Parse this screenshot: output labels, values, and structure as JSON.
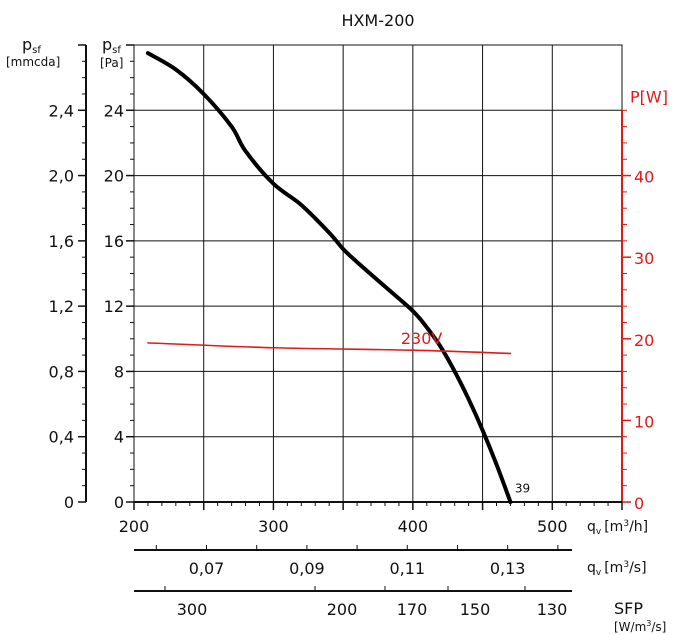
{
  "chart_data": {
    "type": "line",
    "title": "HXM-200",
    "left_axis_mmcda": {
      "label_main": "p",
      "label_sub": "sf",
      "unit": "[mmcda]",
      "range": [
        0,
        2.8
      ],
      "ticks": [
        0,
        0.4,
        0.8,
        1.2,
        1.6,
        2.0,
        2.4
      ],
      "tick_labels": [
        "0",
        "0,4",
        "0,8",
        "1,2",
        "1,6",
        "2,0",
        "2,4"
      ]
    },
    "left_axis_pa": {
      "label_main": "p",
      "label_sub": "sf",
      "unit": "[Pa]",
      "range": [
        0,
        28
      ],
      "ticks": [
        0,
        4,
        8,
        12,
        16,
        20,
        24
      ],
      "tick_labels": [
        "0",
        "4",
        "8",
        "12",
        "16",
        "20",
        "24"
      ]
    },
    "right_axis_power": {
      "label": "P[W]",
      "color": "#e11919",
      "range": [
        0,
        56
      ],
      "ticks": [
        0,
        10,
        20,
        30,
        40
      ],
      "tick_labels": [
        "0",
        "10",
        "20",
        "30",
        "40"
      ]
    },
    "x_axis_m3h": {
      "label_main": "q",
      "label_sub": "v",
      "unit_prefix": "[m",
      "unit_sup": "3",
      "unit_suffix": "/h]",
      "range": [
        200,
        550
      ],
      "ticks": [
        200,
        300,
        400,
        500
      ],
      "tick_labels": [
        "200",
        "300",
        "400",
        "500"
      ]
    },
    "x_axis_m3s": {
      "label_main": "q",
      "label_sub": "v",
      "unit_prefix": "[m",
      "unit_sup": "3",
      "unit_suffix": "/s]",
      "ticks": [
        0.07,
        0.09,
        0.11,
        0.13
      ],
      "tick_labels": [
        "0,07",
        "0,09",
        "0,11",
        "0,13"
      ]
    },
    "x_axis_sfp": {
      "label": "SFP",
      "unit_prefix": "[W/m",
      "unit_sup": "3",
      "unit_suffix": "/s]",
      "ticks": [
        300,
        200,
        170,
        150,
        130
      ],
      "tick_labels": [
        "300",
        "200",
        "170",
        "150",
        "130"
      ]
    },
    "series": [
      {
        "axis": "pressure_pa",
        "color": "#000000",
        "x": [
          210,
          230,
          250,
          270,
          280,
          300,
          320,
          340,
          350,
          360,
          380,
          400,
          410,
          420,
          430,
          440,
          450,
          460,
          470
        ],
        "y": [
          27.5,
          26.5,
          25.0,
          23.0,
          21.5,
          19.5,
          18.2,
          16.5,
          15.5,
          14.7,
          13.2,
          11.7,
          10.7,
          9.5,
          8.0,
          6.3,
          4.4,
          2.3,
          0
        ]
      },
      {
        "name": "230V",
        "axis": "power_w",
        "color": "#e11919",
        "x": [
          210,
          300,
          400,
          470
        ],
        "y": [
          19.5,
          18.9,
          18.6,
          18.2
        ]
      }
    ],
    "annotations": [
      {
        "text": "39",
        "x": 471,
        "y_pa": 0.7
      }
    ],
    "grid": true
  }
}
